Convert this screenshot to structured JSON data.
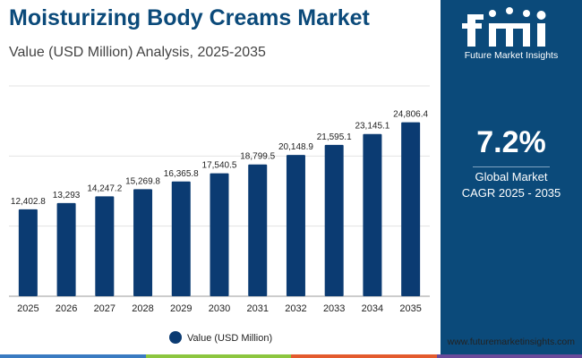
{
  "title": "Moisturizing Body Creams Market",
  "subtitle": "Value (USD Million) Analysis, 2025-2035",
  "chart_data": {
    "type": "bar",
    "categories": [
      "2025",
      "2026",
      "2027",
      "2028",
      "2029",
      "2030",
      "2031",
      "2032",
      "2033",
      "2034",
      "2035"
    ],
    "series": [
      {
        "name": "Value (USD Million)",
        "values": [
          12402.8,
          13293,
          14247.2,
          15269.8,
          16365.8,
          17540.5,
          18799.5,
          20148.9,
          21595.1,
          23145.1,
          24806.4
        ]
      }
    ],
    "value_labels": [
      "12,402.8",
      "13,293",
      "14,247.2",
      "15,269.8",
      "16,365.8",
      "17,540.5",
      "18,799.5",
      "20,148.9",
      "21,595.1",
      "23,145.1",
      "24,806.4"
    ],
    "ylim": [
      0,
      30000
    ],
    "grid": true,
    "legend_position": "bottom-center",
    "bar_color": "#0b3b72"
  },
  "sidebar": {
    "brand": "Future Market Insights",
    "cagr_value": "7.2%",
    "cagr_label_line1": "Global Market",
    "cagr_label_line2": "CAGR 2025 - 2035",
    "bg_color": "#0b4a7a"
  },
  "website": "www.futuremarketinsights.com",
  "footer_colors": [
    "#3a7bc1",
    "#8cc63f",
    "#e35b2e",
    "#6a4a9a"
  ]
}
